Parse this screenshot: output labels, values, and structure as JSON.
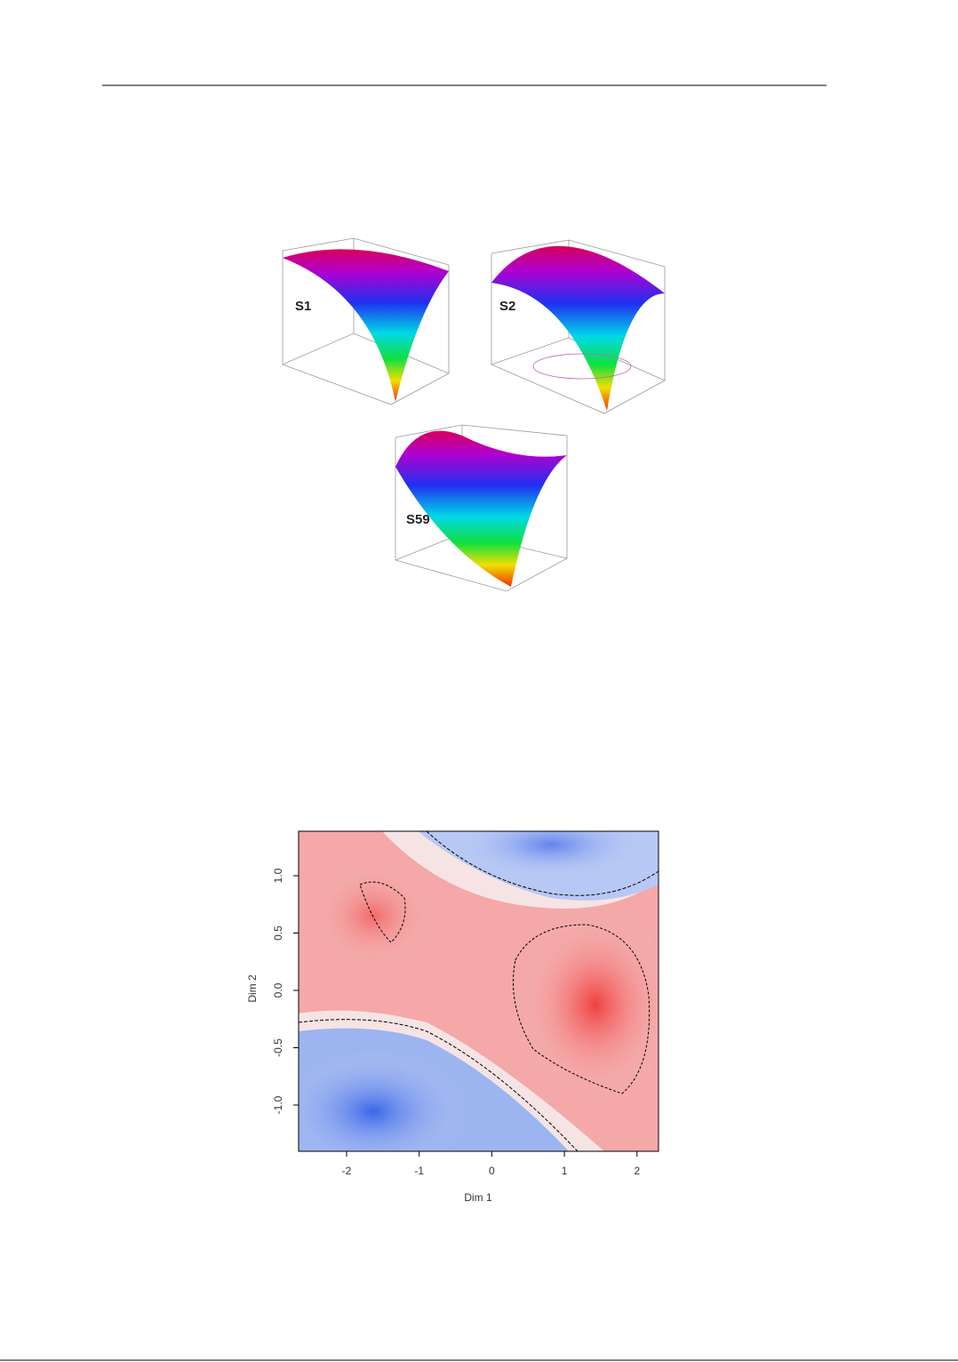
{
  "figures": [
    {
      "panels": [
        {
          "label": "S1"
        },
        {
          "label": "S2"
        },
        {
          "label": "S59"
        }
      ]
    },
    {
      "x_axis_label": "Dim 1",
      "y_axis_label": "Dim 2",
      "x_ticks": [
        "-2",
        "-1",
        "0",
        "1",
        "2"
      ],
      "y_ticks": [
        "1.0",
        "0.5",
        "0.0",
        "-0.5",
        "-1.0"
      ]
    }
  ]
}
